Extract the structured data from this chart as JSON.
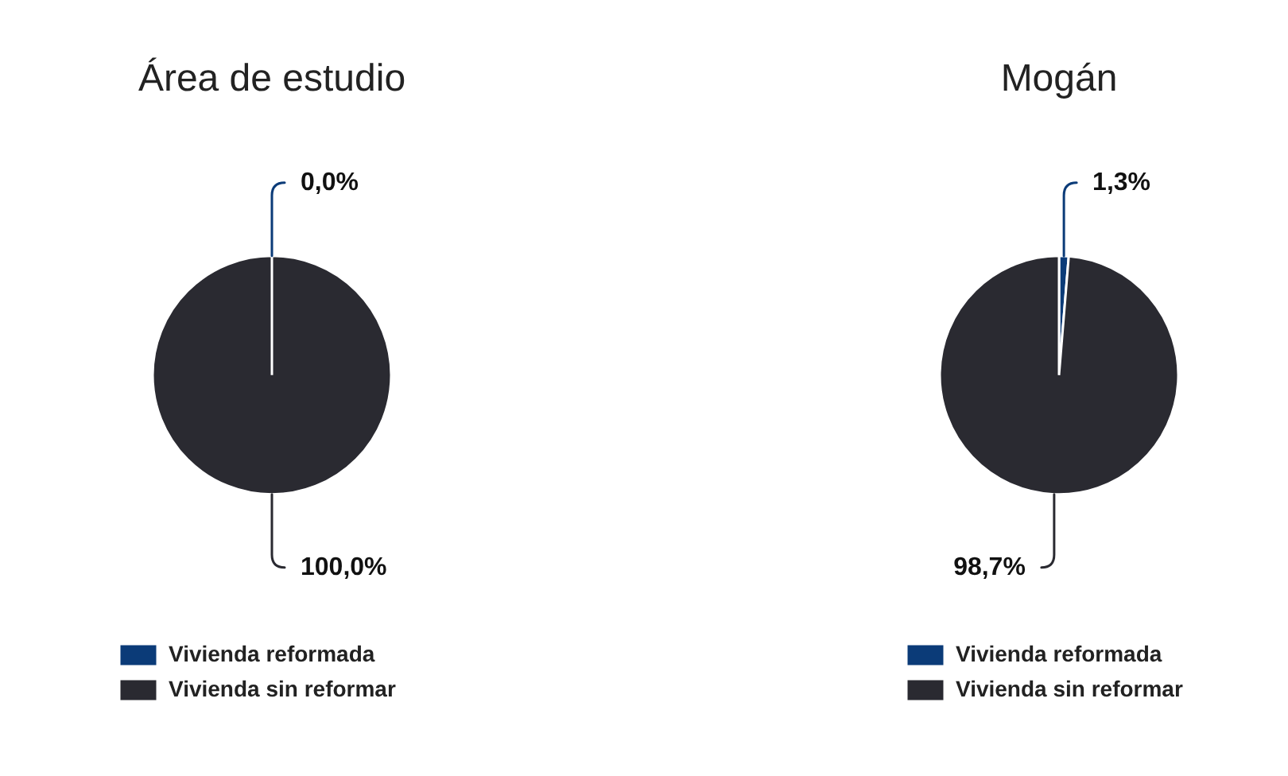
{
  "chart_data": [
    {
      "type": "pie",
      "title": "Área de estudio",
      "categories": [
        "Vivienda reformada",
        "Vivienda sin reformar"
      ],
      "values": [
        0.0,
        100.0
      ],
      "colors": [
        "#0b3b78",
        "#2a2a31"
      ],
      "value_labels": [
        "0,0%",
        "100,0%"
      ],
      "legend": "bottom"
    },
    {
      "type": "pie",
      "title": "Mogán",
      "categories": [
        "Vivienda reformada",
        "Vivienda sin reformar"
      ],
      "values": [
        1.3,
        98.7
      ],
      "colors": [
        "#0b3b78",
        "#2a2a31"
      ],
      "value_labels": [
        "1,3%",
        "98,7%"
      ],
      "legend": "bottom"
    }
  ]
}
